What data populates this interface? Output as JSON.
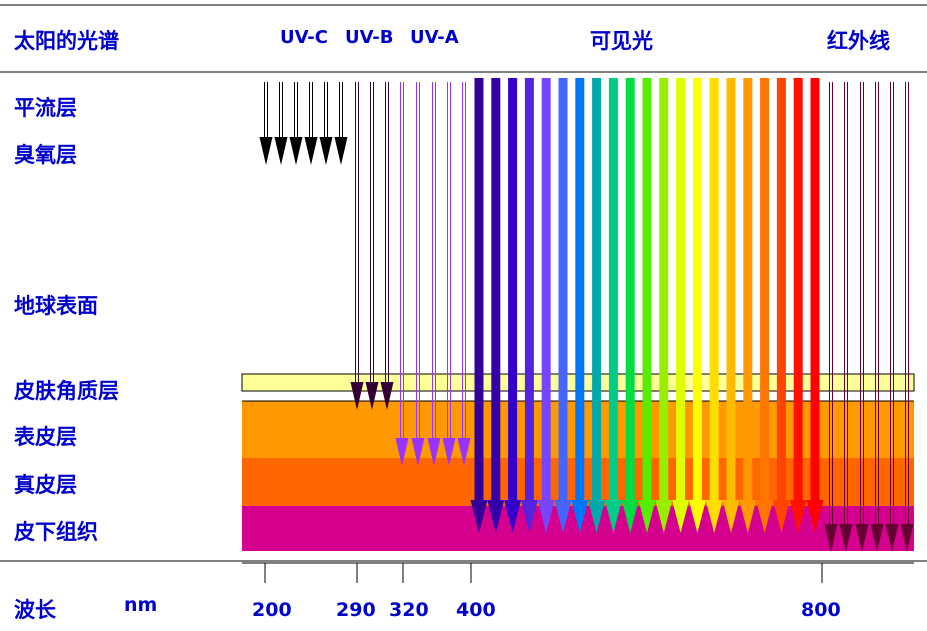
{
  "title": "太阳的光谱",
  "bands": {
    "uvc": "UV-C",
    "uvb": "UV-B",
    "uva": "UV-A",
    "visible": "可见光",
    "infrared": "红外线"
  },
  "layers": {
    "stratosphere": "平流层",
    "ozone": "臭氧层",
    "earth_surface": "地球表面",
    "stratum_corneum": "皮肤角质层",
    "epidermis": "表皮层",
    "dermis": "真皮层",
    "subcutis": "皮下组织"
  },
  "axis": {
    "label": "波长",
    "unit": "nm",
    "ticks": [
      "200",
      "290",
      "320",
      "400",
      "800"
    ]
  },
  "colors": {
    "text": "#0000cc",
    "stratum_corneum": "#ffff99",
    "epidermis": "#ff9900",
    "dermis": "#ff6600",
    "subcutis": "#d6008f",
    "uvc_arrow": "#000000",
    "uvb_arrow": "#330033",
    "uva_arrow": "#9933ff",
    "infrared_arrow": "#660033",
    "visible_arrows": [
      "#330099",
      "#3300aa",
      "#3300cc",
      "#5522dd",
      "#7744ff",
      "#4466ff",
      "#0077ff",
      "#00aaaa",
      "#00cc88",
      "#00dd44",
      "#55ee00",
      "#99ee00",
      "#ddff00",
      "#ffff00",
      "#ffdd00",
      "#ffbb00",
      "#ff9900",
      "#ff7700",
      "#ff4400",
      "#ff1100",
      "#ff0000"
    ]
  }
}
